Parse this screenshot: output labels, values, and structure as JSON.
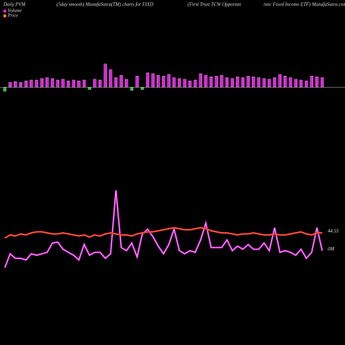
{
  "chart_data": {
    "type": "pvm",
    "title_parts": [
      "Daily PVM",
      "(5day smooth) MunafaSutra(TM) charts for FIXD",
      "(First Trust TCW Opportun",
      "istic Fixed Income  ETF) MunafaSutra.com"
    ],
    "legend": [
      {
        "name": "Volume",
        "color": "#e020e0"
      },
      {
        "name": "Price",
        "color": "#ff7f27"
      }
    ],
    "pvm": {
      "color": "#e020e0",
      "negative_color": "#30c030",
      "ylim": [
        -10,
        40
      ],
      "values": [
        -5,
        6,
        7,
        6,
        8,
        9,
        9,
        11,
        12,
        11,
        9,
        10,
        8,
        9,
        8,
        9,
        -3,
        10,
        9,
        29,
        22,
        12,
        15,
        10,
        -4,
        14,
        -3,
        18,
        17,
        15,
        14,
        16,
        12,
        11,
        10,
        8,
        9,
        17,
        15,
        13,
        14,
        15,
        12,
        11,
        13,
        12,
        14,
        13,
        12,
        11,
        10,
        12,
        16,
        14,
        12,
        10,
        9,
        8,
        14,
        13,
        12
      ]
    },
    "volume": {
      "color": "#e020e0",
      "label": "0M",
      "ylim": [
        0,
        0.4
      ],
      "values": [
        0.007,
        0.074,
        0.052,
        0.052,
        0.044,
        0.074,
        0.067,
        0.074,
        0.081,
        0.126,
        0.13,
        0.096,
        0.081,
        0.067,
        0.044,
        0.119,
        0.067,
        0.081,
        0.081,
        0.052,
        0.074,
        0.381,
        0.104,
        0.089,
        0.126,
        0.059,
        0.17,
        0.193,
        0.156,
        0.111,
        0.074,
        0.119,
        0.193,
        0.089,
        0.074,
        0.089,
        0.081,
        0.141,
        0.222,
        0.104,
        0.104,
        0.104,
        0.141,
        0.089,
        0.111,
        0.096,
        0.119,
        0.096,
        0.096,
        0.126,
        0.089,
        0.2,
        0.081,
        0.089,
        0.081,
        0.067,
        0.096,
        0.052,
        0.081,
        0.2,
        0.089
      ]
    },
    "price": {
      "color": "#e02020",
      "label": "44.55",
      "ylim": [
        44.2,
        45.0
      ],
      "values": [
        44.5,
        44.53,
        44.52,
        44.54,
        44.53,
        44.55,
        44.56,
        44.56,
        44.55,
        44.54,
        44.54,
        44.55,
        44.54,
        44.53,
        44.52,
        44.53,
        44.51,
        44.53,
        44.52,
        44.54,
        44.55,
        44.54,
        44.53,
        44.53,
        44.52,
        44.54,
        44.55,
        44.56,
        44.56,
        44.57,
        44.58,
        44.59,
        44.6,
        44.59,
        44.58,
        44.58,
        44.59,
        44.6,
        44.59,
        44.57,
        44.56,
        44.55,
        44.55,
        44.54,
        44.53,
        44.54,
        44.54,
        44.55,
        44.54,
        44.53,
        44.53,
        44.54,
        44.53,
        44.53,
        44.54,
        44.55,
        44.56,
        44.54,
        44.53,
        44.55,
        44.55
      ]
    }
  }
}
